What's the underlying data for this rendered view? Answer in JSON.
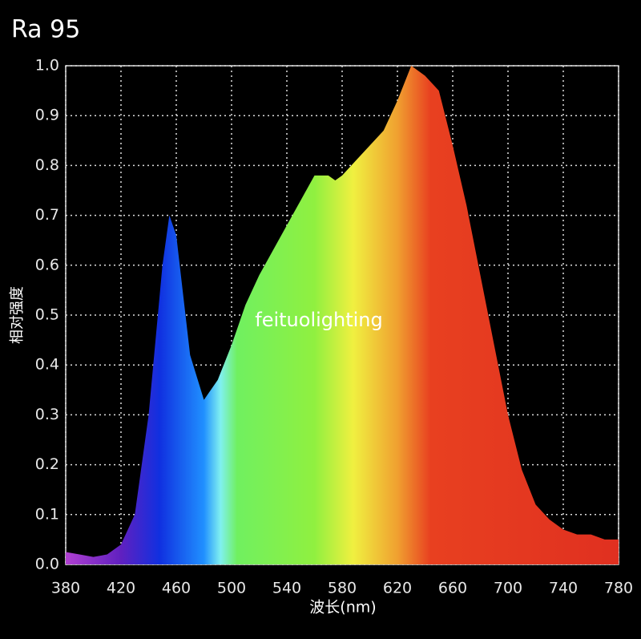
{
  "chart_data": {
    "type": "area",
    "title": "Ra  95",
    "x_label": "波长(nm)",
    "y_label": "相对强度",
    "annotation": "feituolighting",
    "x": [
      380,
      390,
      400,
      410,
      420,
      430,
      440,
      450,
      455,
      460,
      470,
      480,
      490,
      500,
      510,
      520,
      530,
      540,
      550,
      560,
      570,
      575,
      580,
      590,
      600,
      610,
      620,
      630,
      640,
      650,
      660,
      670,
      680,
      690,
      700,
      710,
      720,
      730,
      740,
      750,
      760,
      770,
      780
    ],
    "values": [
      0.025,
      0.02,
      0.015,
      0.02,
      0.04,
      0.1,
      0.3,
      0.6,
      0.7,
      0.66,
      0.42,
      0.33,
      0.37,
      0.44,
      0.52,
      0.58,
      0.63,
      0.68,
      0.73,
      0.78,
      0.78,
      0.77,
      0.78,
      0.81,
      0.84,
      0.87,
      0.93,
      1.0,
      0.98,
      0.95,
      0.84,
      0.72,
      0.58,
      0.44,
      0.3,
      0.19,
      0.12,
      0.09,
      0.07,
      0.06,
      0.06,
      0.05,
      0.05
    ],
    "xlim": [
      380,
      780
    ],
    "ylim": [
      0,
      1
    ],
    "xticks": [
      380,
      420,
      460,
      500,
      540,
      580,
      620,
      660,
      700,
      740,
      780
    ],
    "yticks": [
      {
        "value": 0,
        "label": "0.0"
      },
      0.1,
      0.2,
      0.3,
      0.4,
      0.5,
      0.6,
      0.7,
      0.8,
      0.9,
      {
        "value": 1,
        "label": "1.0"
      }
    ],
    "grid": true
  }
}
